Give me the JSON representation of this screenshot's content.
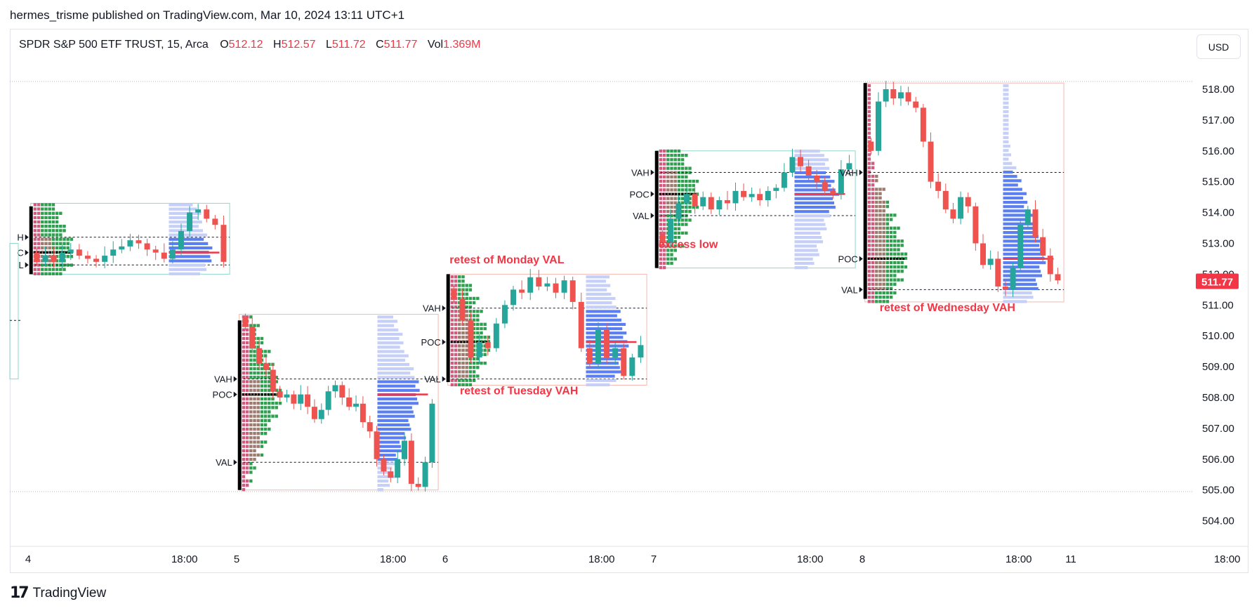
{
  "header": {
    "publisher": "hermes_trisme published on TradingView.com, Mar 10, 2024 13:11 UTC+1"
  },
  "legend": {
    "symbol": "SPDR S&P 500 ETF TRUST, 15, Arca",
    "o_label": "O",
    "o_value": "512.12",
    "h_label": "H",
    "h_value": "512.57",
    "l_label": "L",
    "l_value": "511.72",
    "c_label": "C",
    "c_value": "511.77",
    "vol_label": "Vol",
    "vol_value": "1.369M"
  },
  "currency": "USD",
  "brand": {
    "logo": "17",
    "name": "TradingView"
  },
  "colors": {
    "up": "#26a69a",
    "down": "#ef5350",
    "accent": "#f23645",
    "profile": "#5b7ff0",
    "profile_light": "#c5cff7",
    "tpo_green": "#2e9e4f",
    "tpo_pink": "#d05b7f",
    "tpo_brown": "#9c7a6e"
  },
  "chart_data": {
    "type": "candlestick",
    "title": "",
    "xlabel": "",
    "ylabel": "",
    "ylim": [
      503.3,
      518.6
    ],
    "y_ticks": [
      "518.00",
      "517.00",
      "516.00",
      "515.00",
      "514.00",
      "513.00",
      "512.00",
      "511.00",
      "510.00",
      "509.00",
      "508.00",
      "507.00",
      "506.00",
      "505.00",
      "504.00"
    ],
    "last_price": "511.77",
    "x_ticks": [
      {
        "label": "4",
        "day": 0,
        "hour": 0
      },
      {
        "label": "18:00",
        "day": 0,
        "hour": 18
      },
      {
        "label": "5",
        "day": 1,
        "hour": 0
      },
      {
        "label": "18:00",
        "day": 1,
        "hour": 18
      },
      {
        "label": "6",
        "day": 2,
        "hour": 0
      },
      {
        "label": "18:00",
        "day": 2,
        "hour": 18
      },
      {
        "label": "7",
        "day": 3,
        "hour": 0
      },
      {
        "label": "18:00",
        "day": 3,
        "hour": 18
      },
      {
        "label": "8",
        "day": 4,
        "hour": 0
      },
      {
        "label": "18:00",
        "day": 4,
        "hour": 18
      },
      {
        "label": "11",
        "day": 5,
        "hour": 0
      },
      {
        "label": "18:00",
        "day": 5,
        "hour": 18
      }
    ],
    "sessions": [
      {
        "day": 0,
        "vah": 513.2,
        "poc": 512.7,
        "val": 512.3,
        "vah_label": "H",
        "poc_label": "C",
        "val_label": "L",
        "rth_high": 514.2,
        "rth_low": 512.0,
        "session_high": 514.3,
        "session_low": 512.0,
        "closes": [
          512.4,
          512.6,
          512.4,
          512.7,
          512.8,
          512.6,
          512.5,
          512.4,
          512.6,
          512.8,
          512.9,
          513.1,
          513.0,
          512.8,
          512.7,
          512.5,
          512.8,
          513.4,
          514.0,
          514.1,
          513.8,
          513.6,
          512.4
        ]
      },
      {
        "day": 1,
        "vah": 508.6,
        "poc": 508.1,
        "val": 505.9,
        "vah_label": "VAH",
        "poc_label": "POC",
        "val_label": "VAL",
        "rth_high": 510.5,
        "rth_low": 505.0,
        "session_high": 510.7,
        "session_low": 505.0,
        "closes": [
          510.3,
          509.6,
          509.1,
          508.9,
          508.2,
          508.0,
          508.1,
          507.8,
          508.1,
          507.7,
          507.3,
          507.6,
          508.2,
          508.4,
          508.0,
          507.7,
          507.8,
          507.2,
          506.9,
          506.0,
          505.6,
          505.4,
          506.0,
          506.6,
          505.2,
          505.1,
          505.9,
          507.8
        ]
      },
      {
        "day": 2,
        "vah": 510.9,
        "poc": 509.8,
        "val": 508.6,
        "vah_label": "VAH",
        "poc_label": "POC",
        "val_label": "VAL",
        "rth_high": 512.0,
        "rth_low": 508.5,
        "session_high": 512.0,
        "session_low": 508.4,
        "closes": [
          511.2,
          510.5,
          509.3,
          509.8,
          509.6,
          510.4,
          511.0,
          511.5,
          511.4,
          511.9,
          511.6,
          511.7,
          511.4,
          511.8,
          511.1,
          509.6,
          509.1,
          510.2,
          509.3,
          509.6,
          508.7,
          509.3,
          509.7
        ]
      },
      {
        "day": 3,
        "vah": 515.3,
        "poc": 514.6,
        "val": 513.9,
        "vah_label": "VAH",
        "poc_label": "POC",
        "val_label": "VAL",
        "rth_high": 516.0,
        "rth_low": 512.2,
        "session_high": 516.0,
        "session_low": 512.2,
        "closes": [
          513.0,
          513.8,
          514.3,
          514.6,
          514.2,
          514.5,
          514.1,
          514.4,
          514.3,
          514.7,
          514.5,
          514.6,
          514.4,
          514.7,
          514.8,
          515.3,
          515.8,
          515.5,
          515.2,
          515.0,
          514.7,
          514.6,
          515.4,
          515.6
        ]
      },
      {
        "day": 4,
        "vah": 515.3,
        "poc": 512.5,
        "val": 511.5,
        "vah_label": "VAH",
        "poc_label": "POC",
        "val_label": "VAL",
        "rth_high": 518.2,
        "rth_low": 511.2,
        "session_high": 518.2,
        "session_low": 511.1,
        "closes": [
          516.0,
          517.6,
          518.0,
          517.7,
          517.9,
          517.6,
          517.4,
          516.3,
          515.0,
          514.7,
          514.1,
          513.8,
          514.5,
          514.2,
          513.0,
          512.3,
          512.5,
          511.6,
          511.5,
          512.2,
          513.6,
          514.1,
          513.2,
          512.6,
          512.0,
          511.8
        ]
      }
    ],
    "annotations": [
      {
        "text": "retest of  Monday VAL",
        "day": 2,
        "hour": 0.5,
        "price": 512.35
      },
      {
        "text": "retest of Tuesday VAH",
        "day": 2,
        "hour": 1.7,
        "price": 508.1
      },
      {
        "text": "excess low",
        "day": 3,
        "hour": 0.55,
        "price": 512.85
      },
      {
        "text": "retest of Wednesday VAH",
        "day": 4,
        "hour": 2.0,
        "price": 510.8
      }
    ]
  }
}
